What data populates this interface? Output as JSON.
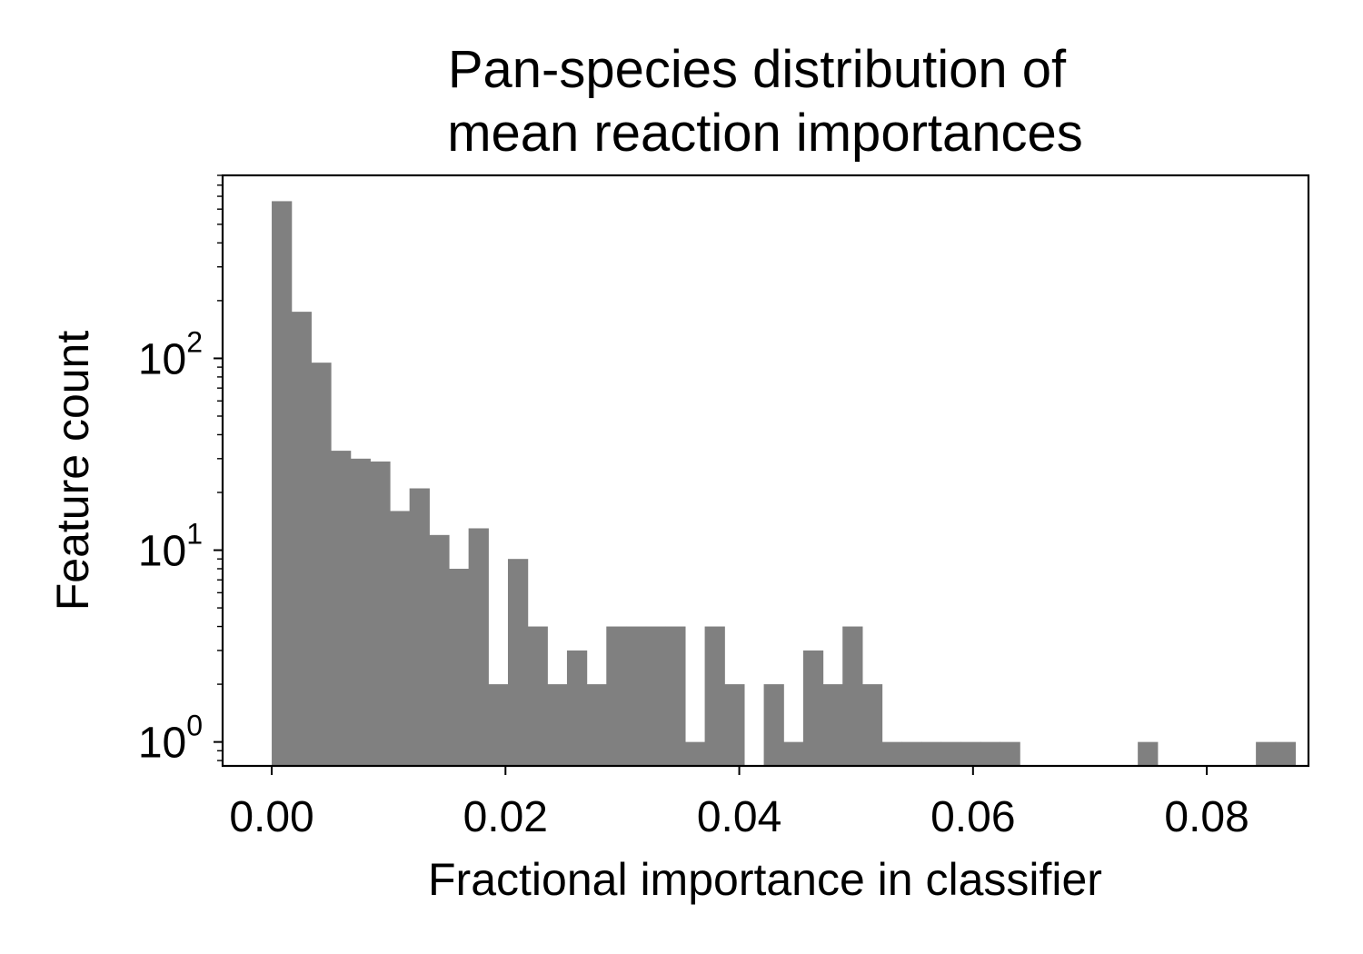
{
  "chart_data": {
    "type": "bar",
    "title_lines": [
      "Pan-species distribution of",
      "mean reaction importances"
    ],
    "xlabel": "Fractional importance in classifier",
    "ylabel": "Feature count",
    "y_scale": "log",
    "xlim": [
      -0.0042,
      0.0887
    ],
    "ylim": [
      0.75,
      900
    ],
    "bar_color": "#808080",
    "x_ticks": [
      {
        "value": 0.0,
        "label": "0.00"
      },
      {
        "value": 0.02,
        "label": "0.02"
      },
      {
        "value": 0.04,
        "label": "0.04"
      },
      {
        "value": 0.06,
        "label": "0.06"
      },
      {
        "value": 0.08,
        "label": "0.08"
      }
    ],
    "y_ticks": [
      {
        "value": 1,
        "base": "10",
        "exp": "0"
      },
      {
        "value": 10,
        "base": "10",
        "exp": "1"
      },
      {
        "value": 100,
        "base": "10",
        "exp": "2"
      }
    ],
    "bin_start": 0.0,
    "bin_width": 0.001684,
    "counts": [
      660,
      175,
      95,
      33,
      30,
      29,
      16,
      21,
      12,
      8,
      13,
      2,
      9,
      4,
      2,
      3,
      2,
      4,
      4,
      4,
      4,
      1,
      4,
      2,
      0,
      2,
      1,
      3,
      2,
      4,
      2,
      1,
      1,
      1,
      1,
      1,
      1,
      1,
      0,
      0,
      0,
      0,
      0,
      0,
      1,
      0,
      0,
      0,
      0,
      0,
      1,
      1
    ]
  }
}
